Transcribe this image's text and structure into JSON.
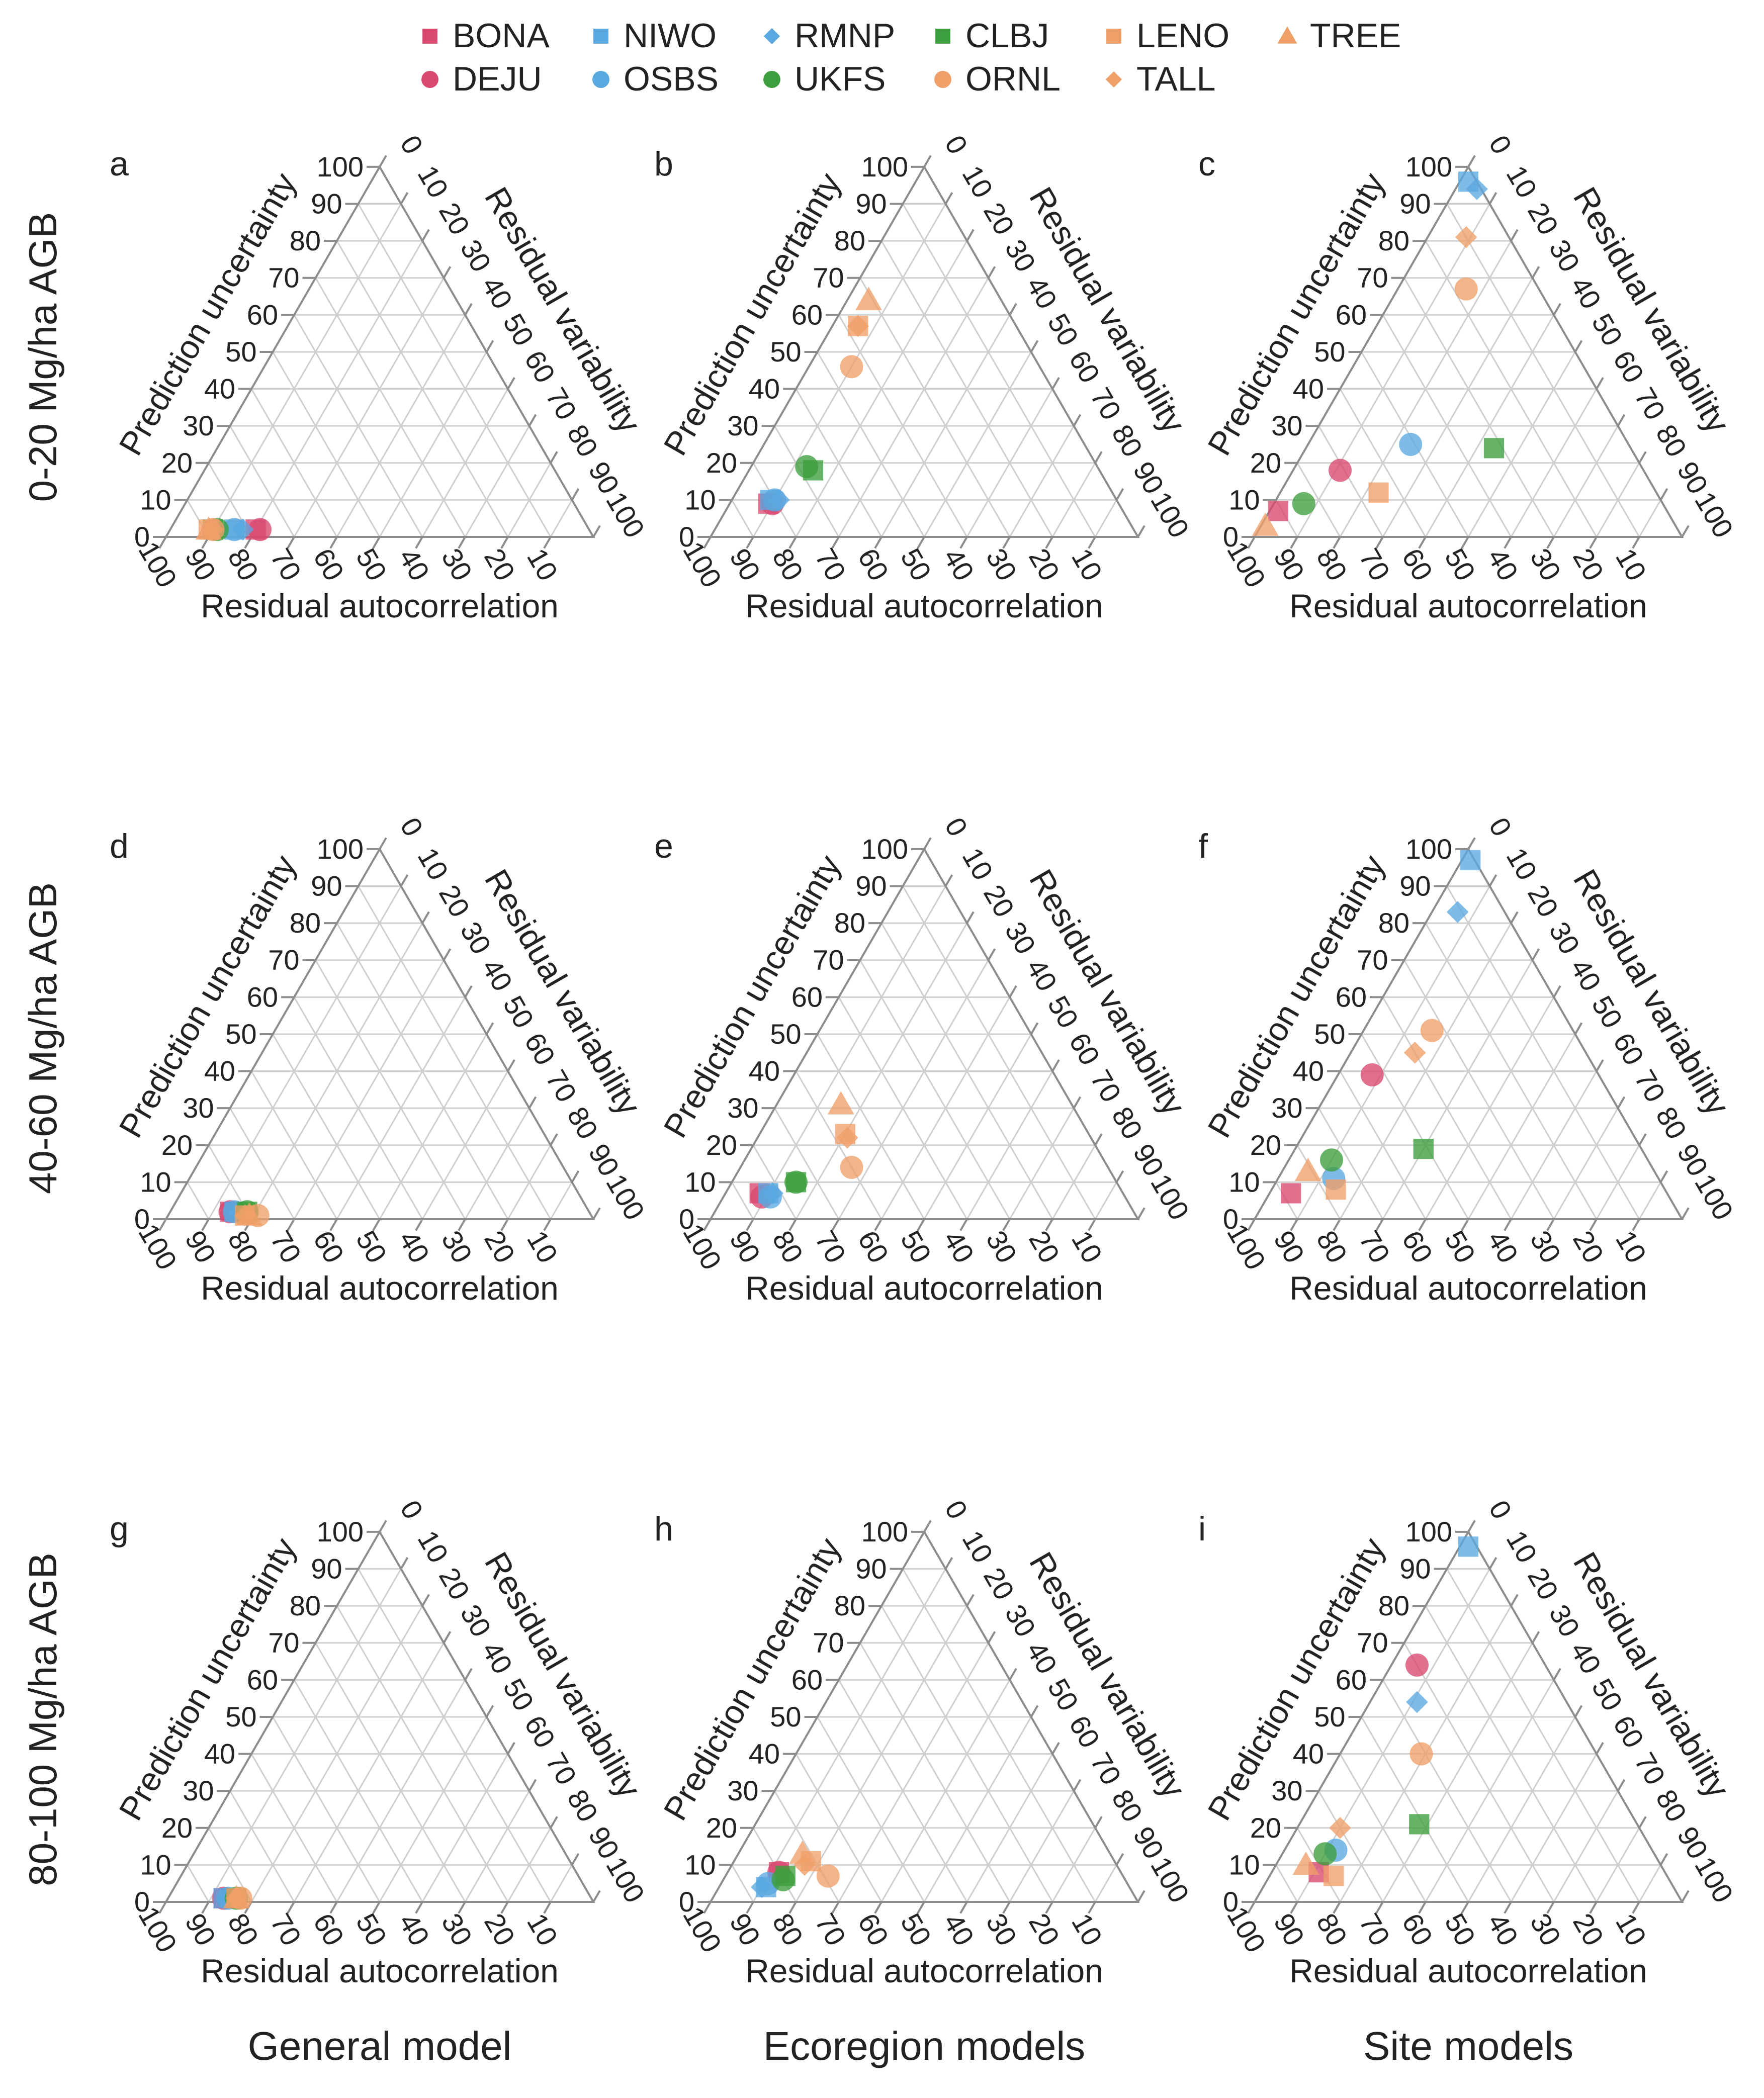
{
  "legend": [
    {
      "name": "BONA",
      "color": "#d9486f",
      "shape": "square"
    },
    {
      "name": "DEJU",
      "color": "#d9486f",
      "shape": "circle"
    },
    {
      "name": "NIWO",
      "color": "#5aa8e0",
      "shape": "square"
    },
    {
      "name": "OSBS",
      "color": "#5aa8e0",
      "shape": "circle"
    },
    {
      "name": "RMNP",
      "color": "#5aa8e0",
      "shape": "diamond"
    },
    {
      "name": "UKFS",
      "color": "#3c9e3c",
      "shape": "circle"
    },
    {
      "name": "CLBJ",
      "color": "#3c9e3c",
      "shape": "square"
    },
    {
      "name": "ORNL",
      "color": "#ef9f68",
      "shape": "circle"
    },
    {
      "name": "LENO",
      "color": "#ef9f68",
      "shape": "square"
    },
    {
      "name": "TALL",
      "color": "#ef9f68",
      "shape": "diamond"
    },
    {
      "name": "TREE",
      "color": "#ef9f68",
      "shape": "triangle"
    }
  ],
  "row_labels": [
    "0-20 Mg/ha AGB",
    "40-60 Mg/ha AGB",
    "80-100 Mg/ha AGB"
  ],
  "column_labels": [
    "General model",
    "Ecoregion models",
    "Site models"
  ],
  "axis_labels": {
    "left": "Prediction uncertainty",
    "right": "Residual variability",
    "bottom": "Residual autocorrelation"
  },
  "left_ticks": [
    "0",
    "10",
    "20",
    "30",
    "40",
    "50",
    "60",
    "70",
    "80",
    "90",
    "100"
  ],
  "right_ticks": [
    "0",
    "10",
    "20",
    "30",
    "40",
    "50",
    "60",
    "70",
    "80",
    "90",
    "100"
  ],
  "bottom_ticks": [
    "100",
    "90",
    "80",
    "70",
    "60",
    "50",
    "40",
    "30",
    "20",
    "10"
  ],
  "chart_data": {
    "type": "scatter",
    "subtype": "ternary",
    "components": [
      "Prediction uncertainty",
      "Residual variability",
      "Residual autocorrelation"
    ],
    "units": "percent",
    "panels": [
      {
        "letter": "a",
        "points": [
          {
            "site": "BONA",
            "pu": 2,
            "rv": 20,
            "ra": 78
          },
          {
            "site": "DEJU",
            "pu": 2,
            "rv": 21,
            "ra": 77
          },
          {
            "site": "NIWO",
            "pu": 2,
            "rv": 15,
            "ra": 83
          },
          {
            "site": "OSBS",
            "pu": 2,
            "rv": 15,
            "ra": 83
          },
          {
            "site": "RMNP",
            "pu": 2,
            "rv": 17,
            "ra": 81
          },
          {
            "site": "UKFS",
            "pu": 2,
            "rv": 11,
            "ra": 87
          },
          {
            "site": "CLBJ",
            "pu": 2,
            "rv": 10,
            "ra": 88
          },
          {
            "site": "ORNL",
            "pu": 2,
            "rv": 10,
            "ra": 88
          },
          {
            "site": "LENO",
            "pu": 2,
            "rv": 9,
            "ra": 89
          },
          {
            "site": "TALL",
            "pu": 2,
            "rv": 10,
            "ra": 88
          },
          {
            "site": "TREE",
            "pu": 2,
            "rv": 9,
            "ra": 89
          }
        ]
      },
      {
        "letter": "b",
        "points": [
          {
            "site": "BONA",
            "pu": 9,
            "rv": 9,
            "ra": 82
          },
          {
            "site": "DEJU",
            "pu": 9,
            "rv": 10,
            "ra": 81
          },
          {
            "site": "NIWO",
            "pu": 10,
            "rv": 9,
            "ra": 81
          },
          {
            "site": "OSBS",
            "pu": 10,
            "rv": 10,
            "ra": 80
          },
          {
            "site": "RMNP",
            "pu": 10,
            "rv": 11,
            "ra": 79
          },
          {
            "site": "UKFS",
            "pu": 19,
            "rv": 13,
            "ra": 68
          },
          {
            "site": "CLBJ",
            "pu": 18,
            "rv": 15,
            "ra": 67
          },
          {
            "site": "ORNL",
            "pu": 46,
            "rv": 10,
            "ra": 44
          },
          {
            "site": "LENO",
            "pu": 57,
            "rv": 6,
            "ra": 37
          },
          {
            "site": "TALL",
            "pu": 57,
            "rv": 6,
            "ra": 37
          },
          {
            "site": "TREE",
            "pu": 64,
            "rv": 5,
            "ra": 31
          }
        ]
      },
      {
        "letter": "c",
        "points": [
          {
            "site": "BONA",
            "pu": 7,
            "rv": 2,
            "ra": 91
          },
          {
            "site": "DEJU",
            "pu": 18,
            "rv": 11,
            "ra": 71
          },
          {
            "site": "NIWO",
            "pu": 96,
            "rv": 2,
            "ra": 2
          },
          {
            "site": "OSBS",
            "pu": 25,
            "rv": 24,
            "ra": 51
          },
          {
            "site": "RMNP",
            "pu": 94,
            "rv": 5,
            "ra": 1
          },
          {
            "site": "UKFS",
            "pu": 9,
            "rv": 7,
            "ra": 84
          },
          {
            "site": "CLBJ",
            "pu": 24,
            "rv": 44,
            "ra": 32
          },
          {
            "site": "ORNL",
            "pu": 67,
            "rv": 16,
            "ra": 17
          },
          {
            "site": "LENO",
            "pu": 12,
            "rv": 23,
            "ra": 65
          },
          {
            "site": "TALL",
            "pu": 81,
            "rv": 9,
            "ra": 10
          },
          {
            "site": "TREE",
            "pu": 3,
            "rv": 1,
            "ra": 96
          }
        ]
      },
      {
        "letter": "d",
        "points": [
          {
            "site": "BONA",
            "pu": 2,
            "rv": 14,
            "ra": 84
          },
          {
            "site": "DEJU",
            "pu": 2,
            "rv": 14,
            "ra": 84
          },
          {
            "site": "NIWO",
            "pu": 2,
            "rv": 15,
            "ra": 83
          },
          {
            "site": "OSBS",
            "pu": 2,
            "rv": 15,
            "ra": 83
          },
          {
            "site": "RMNP",
            "pu": 2,
            "rv": 16,
            "ra": 82
          },
          {
            "site": "UKFS",
            "pu": 2,
            "rv": 18,
            "ra": 80
          },
          {
            "site": "CLBJ",
            "pu": 2,
            "rv": 18,
            "ra": 80
          },
          {
            "site": "ORNL",
            "pu": 1,
            "rv": 21,
            "ra": 78
          },
          {
            "site": "LENO",
            "pu": 1,
            "rv": 18,
            "ra": 81
          },
          {
            "site": "TALL",
            "pu": 1,
            "rv": 18,
            "ra": 81
          },
          {
            "site": "TREE",
            "pu": 1,
            "rv": 19,
            "ra": 80
          }
        ]
      },
      {
        "letter": "e",
        "points": [
          {
            "site": "BONA",
            "pu": 7,
            "rv": 8,
            "ra": 85
          },
          {
            "site": "DEJU",
            "pu": 6,
            "rv": 9,
            "ra": 85
          },
          {
            "site": "NIWO",
            "pu": 7,
            "rv": 10,
            "ra": 83
          },
          {
            "site": "OSBS",
            "pu": 6,
            "rv": 11,
            "ra": 83
          },
          {
            "site": "RMNP",
            "pu": 7,
            "rv": 11,
            "ra": 82
          },
          {
            "site": "UKFS",
            "pu": 10,
            "rv": 15,
            "ra": 75
          },
          {
            "site": "CLBJ",
            "pu": 10,
            "rv": 15,
            "ra": 75
          },
          {
            "site": "ORNL",
            "pu": 14,
            "rv": 26,
            "ra": 60
          },
          {
            "site": "LENO",
            "pu": 23,
            "rv": 20,
            "ra": 57
          },
          {
            "site": "TALL",
            "pu": 22,
            "rv": 21,
            "ra": 57
          },
          {
            "site": "TREE",
            "pu": 31,
            "rv": 15,
            "ra": 54
          }
        ]
      },
      {
        "letter": "f",
        "points": [
          {
            "site": "BONA",
            "pu": 7,
            "rv": 5,
            "ra": 88
          },
          {
            "site": "DEJU",
            "pu": 39,
            "rv": 8,
            "ra": 53
          },
          {
            "site": "NIWO",
            "pu": 97,
            "rv": 2,
            "ra": 1
          },
          {
            "site": "OSBS",
            "pu": 11,
            "rv": 13,
            "ra": 76
          },
          {
            "site": "RMNP",
            "pu": 83,
            "rv": 6,
            "ra": 11
          },
          {
            "site": "UKFS",
            "pu": 16,
            "rv": 10,
            "ra": 74
          },
          {
            "site": "CLBJ",
            "pu": 19,
            "rv": 30,
            "ra": 51
          },
          {
            "site": "ORNL",
            "pu": 51,
            "rv": 16,
            "ra": 33
          },
          {
            "site": "LENO",
            "pu": 8,
            "rv": 15,
            "ra": 77
          },
          {
            "site": "TALL",
            "pu": 45,
            "rv": 15,
            "ra": 40
          },
          {
            "site": "TREE",
            "pu": 13,
            "rv": 6,
            "ra": 81
          }
        ]
      },
      {
        "letter": "g",
        "points": [
          {
            "site": "BONA",
            "pu": 1,
            "rv": 13,
            "ra": 86
          },
          {
            "site": "DEJU",
            "pu": 1,
            "rv": 13,
            "ra": 86
          },
          {
            "site": "NIWO",
            "pu": 1,
            "rv": 13,
            "ra": 86
          },
          {
            "site": "OSBS",
            "pu": 1,
            "rv": 14,
            "ra": 85
          },
          {
            "site": "RMNP",
            "pu": 1,
            "rv": 14,
            "ra": 85
          },
          {
            "site": "UKFS",
            "pu": 1,
            "rv": 16,
            "ra": 83
          },
          {
            "site": "CLBJ",
            "pu": 1,
            "rv": 16,
            "ra": 83
          },
          {
            "site": "ORNL",
            "pu": 1,
            "rv": 17,
            "ra": 82
          },
          {
            "site": "LENO",
            "pu": 1,
            "rv": 16,
            "ra": 83
          },
          {
            "site": "TALL",
            "pu": 1,
            "rv": 16,
            "ra": 83
          },
          {
            "site": "TREE",
            "pu": 1,
            "rv": 16,
            "ra": 83
          }
        ]
      },
      {
        "letter": "h",
        "points": [
          {
            "site": "BONA",
            "pu": 8,
            "rv": 12,
            "ra": 80
          },
          {
            "site": "DEJU",
            "pu": 8,
            "rv": 12,
            "ra": 80
          },
          {
            "site": "NIWO",
            "pu": 4,
            "rv": 11,
            "ra": 85
          },
          {
            "site": "OSBS",
            "pu": 5,
            "rv": 11,
            "ra": 84
          },
          {
            "site": "RMNP",
            "pu": 4,
            "rv": 10,
            "ra": 86
          },
          {
            "site": "UKFS",
            "pu": 6,
            "rv": 14,
            "ra": 80
          },
          {
            "site": "CLBJ",
            "pu": 7,
            "rv": 14,
            "ra": 79
          },
          {
            "site": "ORNL",
            "pu": 7,
            "rv": 24,
            "ra": 69
          },
          {
            "site": "LENO",
            "pu": 11,
            "rv": 18,
            "ra": 71
          },
          {
            "site": "TALL",
            "pu": 10,
            "rv": 17,
            "ra": 73
          },
          {
            "site": "TREE",
            "pu": 13,
            "rv": 15,
            "ra": 72
          }
        ]
      },
      {
        "letter": "i",
        "points": [
          {
            "site": "BONA",
            "pu": 8,
            "rv": 11,
            "ra": 81
          },
          {
            "site": "DEJU",
            "pu": 64,
            "rv": 6,
            "ra": 30
          },
          {
            "site": "NIWO",
            "pu": 96,
            "rv": 2,
            "ra": 2
          },
          {
            "site": "OSBS",
            "pu": 14,
            "rv": 12,
            "ra": 74
          },
          {
            "site": "RMNP",
            "pu": 54,
            "rv": 11,
            "ra": 35
          },
          {
            "site": "UKFS",
            "pu": 13,
            "rv": 10,
            "ra": 77
          },
          {
            "site": "CLBJ",
            "pu": 21,
            "rv": 28,
            "ra": 51
          },
          {
            "site": "ORNL",
            "pu": 40,
            "rv": 19,
            "ra": 41
          },
          {
            "site": "LENO",
            "pu": 7,
            "rv": 15,
            "ra": 78
          },
          {
            "site": "TALL",
            "pu": 20,
            "rv": 10,
            "ra": 70
          },
          {
            "site": "TREE",
            "pu": 10,
            "rv": 7,
            "ra": 83
          }
        ]
      }
    ]
  }
}
